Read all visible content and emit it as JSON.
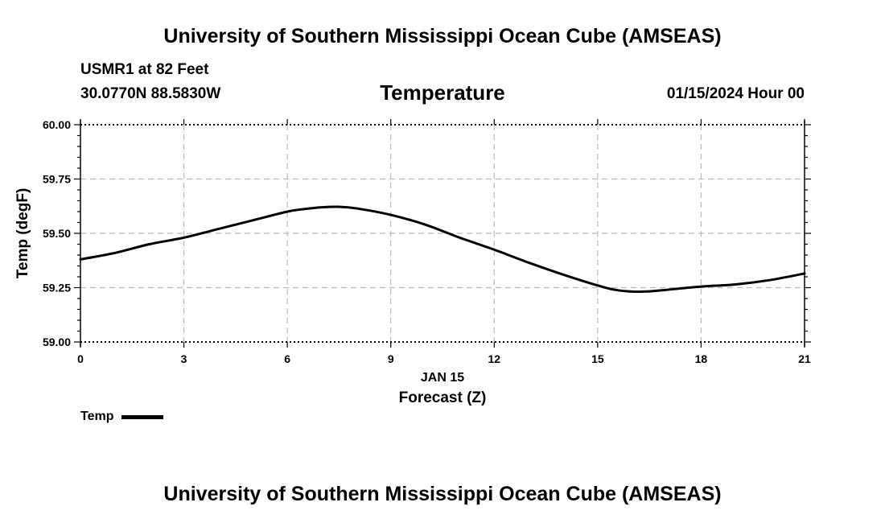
{
  "header": {
    "title": "University of Southern Mississippi Ocean Cube (AMSEAS)",
    "station": "USMR1 at 82 Feet",
    "coordinates": "30.0770N  88.5830W",
    "variable": "Temperature",
    "datetime": "01/15/2024 Hour 00"
  },
  "footer": {
    "title": "University of Southern Mississippi Ocean Cube (AMSEAS)"
  },
  "chart_data": {
    "type": "line",
    "title": "Temperature",
    "xlabel": "Forecast (Z)",
    "xlabel_date": "JAN 15",
    "ylabel": "Temp (degF)",
    "xlim": [
      0,
      21
    ],
    "ylim": [
      59.0,
      60.0
    ],
    "x_ticks": [
      0,
      3,
      6,
      9,
      12,
      15,
      18,
      21
    ],
    "y_ticks": [
      "59.00",
      "59.25",
      "59.50",
      "59.75",
      "60.00"
    ],
    "grid": true,
    "legend_position": "bottom-left",
    "series": [
      {
        "name": "Temp",
        "color": "#000000",
        "x": [
          0,
          1,
          2,
          3,
          4,
          5,
          6,
          6.5,
          7,
          7.5,
          8,
          9,
          10,
          11,
          12,
          13,
          14,
          15,
          15.5,
          16,
          16.5,
          17,
          18,
          19,
          20,
          21
        ],
        "values": [
          59.38,
          59.41,
          59.45,
          59.48,
          59.52,
          59.56,
          59.6,
          59.612,
          59.62,
          59.622,
          59.615,
          59.585,
          59.54,
          59.48,
          59.425,
          59.365,
          59.31,
          59.26,
          59.24,
          59.232,
          59.233,
          59.24,
          59.255,
          59.265,
          59.285,
          59.315
        ]
      }
    ]
  }
}
